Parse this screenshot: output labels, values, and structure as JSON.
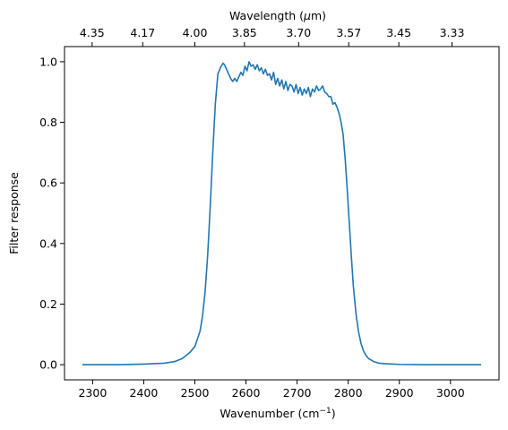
{
  "chart_data": {
    "type": "line",
    "xlabel": "Wavenumber (cm",
    "xlabel_sup": "−1",
    "xlabel_close": ")",
    "ylabel": "Filter response",
    "top_xlabel": "Wavelength (",
    "top_xlabel_mu": "μ",
    "top_xlabel_unit": "m)",
    "xlim": [
      2245,
      3095
    ],
    "ylim": [
      -0.05,
      1.05
    ],
    "grid": false,
    "x_ticks": [
      2300,
      2400,
      2500,
      2600,
      2700,
      2800,
      2900,
      3000
    ],
    "x_tick_labels": [
      "2300",
      "2400",
      "2500",
      "2600",
      "2700",
      "2800",
      "2900",
      "3000"
    ],
    "y_ticks": [
      0.0,
      0.2,
      0.4,
      0.6,
      0.8,
      1.0
    ],
    "y_tick_labels": [
      "0.0",
      "0.2",
      "0.4",
      "0.6",
      "0.8",
      "1.0"
    ],
    "top_ticks_wavenumber": [
      2299,
      2398,
      2500,
      2597,
      2703,
      2801,
      2899,
      3003
    ],
    "top_tick_labels": [
      "4.35",
      "4.17",
      "4.00",
      "3.85",
      "3.70",
      "3.57",
      "3.45",
      "3.33"
    ],
    "series": [
      {
        "color": "#1f77b4",
        "x": [
          2280,
          2350,
          2400,
          2440,
          2460,
          2475,
          2490,
          2500,
          2510,
          2515,
          2520,
          2525,
          2530,
          2535,
          2540,
          2545,
          2550,
          2555,
          2558,
          2562,
          2566,
          2570,
          2574,
          2578,
          2582,
          2586,
          2590,
          2594,
          2598,
          2602,
          2606,
          2610,
          2614,
          2618,
          2622,
          2626,
          2630,
          2634,
          2638,
          2642,
          2646,
          2650,
          2654,
          2658,
          2662,
          2666,
          2670,
          2674,
          2678,
          2682,
          2686,
          2690,
          2694,
          2698,
          2702,
          2706,
          2710,
          2714,
          2718,
          2722,
          2726,
          2730,
          2734,
          2738,
          2742,
          2746,
          2750,
          2754,
          2758,
          2762,
          2766,
          2770,
          2774,
          2778,
          2782,
          2786,
          2790,
          2794,
          2798,
          2802,
          2806,
          2810,
          2815,
          2820,
          2825,
          2830,
          2835,
          2840,
          2850,
          2860,
          2875,
          2900,
          2950,
          3000,
          3060
        ],
        "y": [
          0.0,
          0.0,
          0.002,
          0.005,
          0.01,
          0.02,
          0.04,
          0.06,
          0.11,
          0.16,
          0.24,
          0.36,
          0.52,
          0.7,
          0.86,
          0.96,
          0.98,
          0.995,
          0.99,
          0.975,
          0.96,
          0.945,
          0.935,
          0.945,
          0.935,
          0.95,
          0.965,
          0.955,
          0.985,
          0.97,
          1.0,
          0.985,
          0.99,
          0.975,
          0.99,
          0.97,
          0.98,
          0.96,
          0.975,
          0.955,
          0.96,
          0.94,
          0.965,
          0.925,
          0.945,
          0.92,
          0.94,
          0.91,
          0.935,
          0.905,
          0.925,
          0.92,
          0.9,
          0.925,
          0.895,
          0.915,
          0.89,
          0.91,
          0.895,
          0.915,
          0.885,
          0.91,
          0.9,
          0.92,
          0.905,
          0.91,
          0.92,
          0.9,
          0.895,
          0.885,
          0.885,
          0.86,
          0.865,
          0.85,
          0.83,
          0.8,
          0.76,
          0.68,
          0.58,
          0.47,
          0.36,
          0.26,
          0.17,
          0.11,
          0.07,
          0.045,
          0.03,
          0.02,
          0.01,
          0.005,
          0.003,
          0.001,
          0.0,
          0.0,
          0.0
        ]
      }
    ]
  }
}
